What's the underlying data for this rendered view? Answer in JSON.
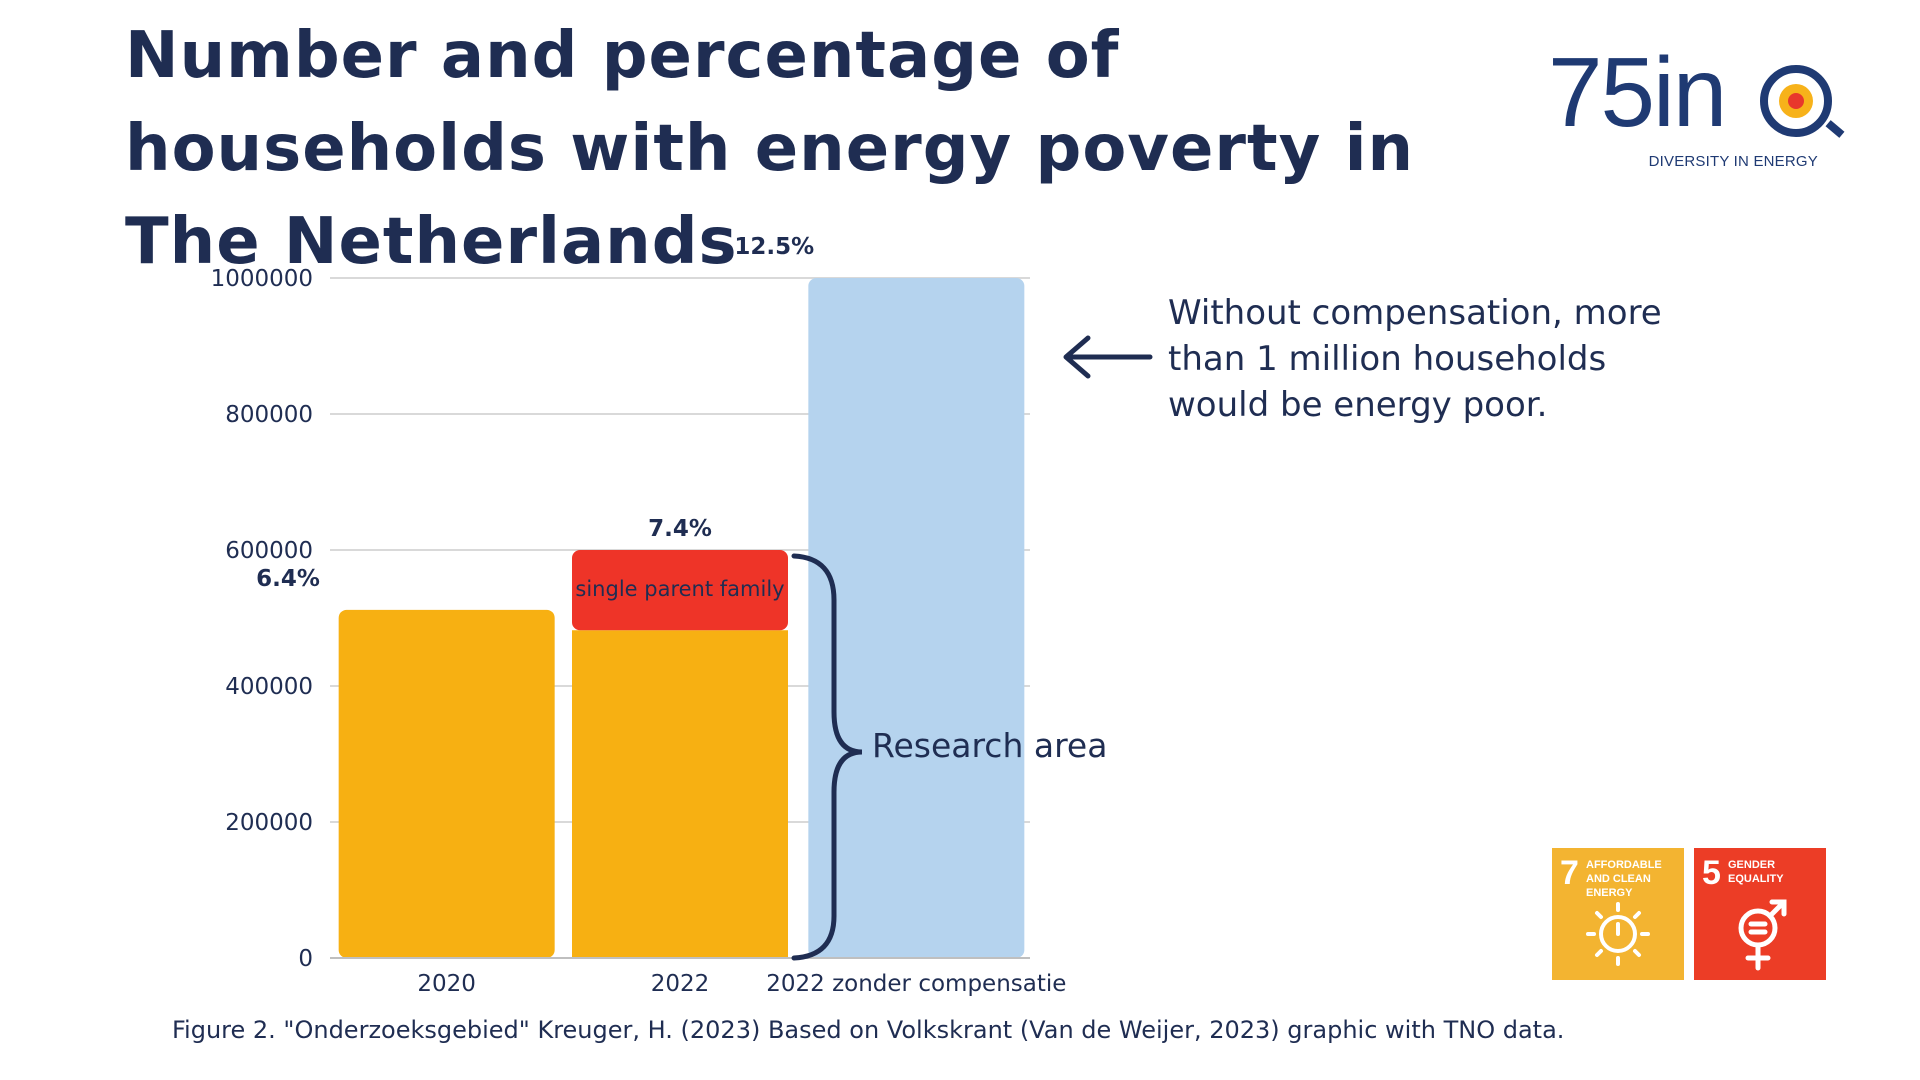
{
  "title": "Number and percentage of households with energy poverty in The Netherlands",
  "logo": {
    "mark": "75in",
    "tagline": "DIVERSITY IN ENERGY"
  },
  "annotation": "Without compensation, more than 1 million households would be energy poor.",
  "research_area_label": "Research area",
  "caption": "Figure 2. \"Onderzoeksgebied\" Kreuger, H. (2023) Based on Volkskrant (Van de Weijer, 2023) graphic with TNO data.",
  "sdg_badges": [
    {
      "number": "7",
      "label": "AFFORDABLE AND CLEAN ENERGY",
      "color": "#f3b431",
      "icon": "sun-power-icon"
    },
    {
      "number": "5",
      "label": "GENDER EQUALITY",
      "color": "#ec3d26",
      "icon": "gender-equality-icon"
    }
  ],
  "colors": {
    "base": "#f7b012",
    "single_parent": "#ee3428",
    "no_compensation": "#b5d3ee",
    "text": "#1f2d52",
    "grid": "#d9d9d9"
  },
  "chart_data": {
    "type": "bar",
    "stacked": true,
    "categories": [
      "2020",
      "2022",
      "2022 zonder compensatie"
    ],
    "series": [
      {
        "values": [
          512000,
          482000,
          1000000
        ]
      },
      {
        "name": "single parent family",
        "values": [
          0,
          118000,
          0
        ]
      }
    ],
    "totals": [
      512000,
      600000,
      1000000
    ],
    "percent_labels": [
      "6.4%",
      "7.4%",
      "12.5%"
    ],
    "yticks": [
      0,
      200000,
      400000,
      600000,
      800000,
      1000000
    ],
    "ytick_labels": [
      "0",
      "200000",
      "400000",
      "600000",
      "800000",
      "1000000"
    ],
    "ylim": [
      0,
      1000000
    ],
    "grid": true,
    "legend": "none"
  }
}
